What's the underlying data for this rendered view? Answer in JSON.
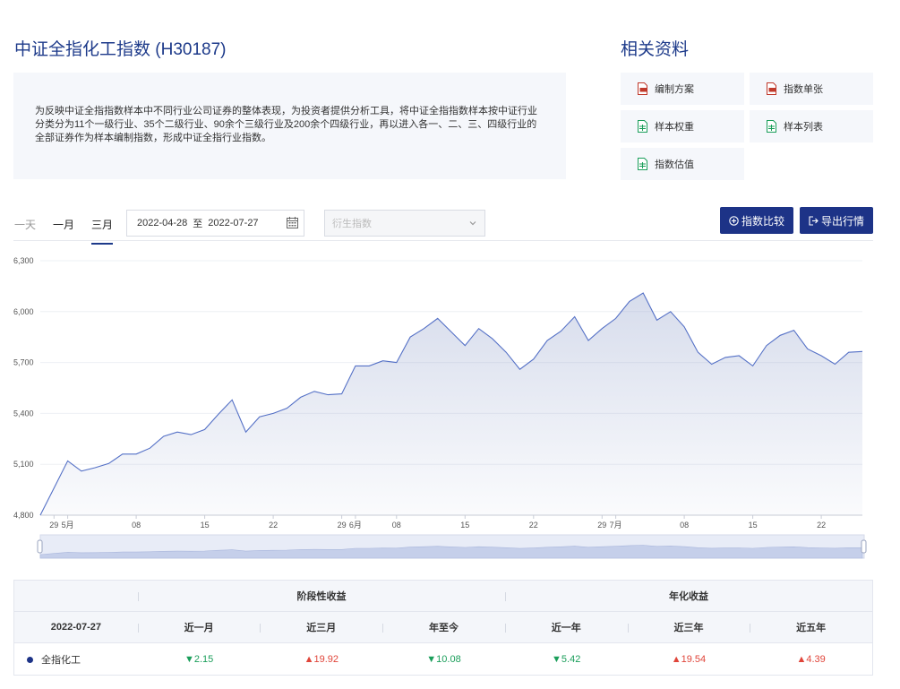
{
  "index": {
    "title": "中证全指化工指数 (H30187)",
    "description": "为反映中证全指指数样本中不同行业公司证券的整体表现，为投资者提供分析工具，将中证全指指数样本按中证行业分类分为11个一级行业、35个二级行业、90余个三级行业及200余个四级行业，再以进入各一、二、三、四级行业的全部证券作为样本编制指数，形成中证全指行业指数。"
  },
  "related": {
    "title": "相关资料",
    "docs": [
      {
        "label": "编制方案",
        "icon": "pdf-icon",
        "color": "#c0392b"
      },
      {
        "label": "指数单张",
        "icon": "pdf-icon",
        "color": "#c0392b"
      },
      {
        "label": "样本权重",
        "icon": "excel-icon",
        "color": "#1a9e5a"
      },
      {
        "label": "样本列表",
        "icon": "excel-icon",
        "color": "#1a9e5a"
      },
      {
        "label": "指数估值",
        "icon": "excel-icon",
        "color": "#1a9e5a"
      }
    ]
  },
  "controls": {
    "range_tabs": [
      "一天",
      "一月",
      "三月"
    ],
    "active_tab": "三月",
    "date_start": "2022-04-28",
    "date_sep": "至",
    "date_end": "2022-07-27",
    "derived_placeholder": "衍生指数",
    "compare_label": "指数比较",
    "export_label": "导出行情"
  },
  "colors": {
    "brand": "#1d3387",
    "line": "#5470c6",
    "up": "#e0453a",
    "down": "#1a9e5a"
  },
  "chart_data": {
    "type": "area",
    "ylim": [
      4800,
      6300
    ],
    "yticks": [
      "4,800",
      "5,100",
      "5,400",
      "5,700",
      "6,000",
      "6,300"
    ],
    "xticks": [
      "29",
      "5月",
      "08",
      "15",
      "22",
      "29",
      "6月",
      "08",
      "15",
      "22",
      "29",
      "7月",
      "08",
      "15",
      "22"
    ],
    "x": [
      "04-28",
      "04-29",
      "05-05",
      "05-06",
      "05-09",
      "05-10",
      "05-11",
      "05-12",
      "05-13",
      "05-16",
      "05-17",
      "05-18",
      "05-19",
      "05-20",
      "05-23",
      "05-24",
      "05-25",
      "05-26",
      "05-27",
      "05-30",
      "05-31",
      "06-01",
      "06-02",
      "06-06",
      "06-07",
      "06-08",
      "06-09",
      "06-10",
      "06-13",
      "06-14",
      "06-15",
      "06-16",
      "06-17",
      "06-20",
      "06-21",
      "06-22",
      "06-23",
      "06-24",
      "06-27",
      "06-28",
      "06-29",
      "06-30",
      "07-01",
      "07-04",
      "07-05",
      "07-06",
      "07-07",
      "07-08",
      "07-11",
      "07-12",
      "07-13",
      "07-14",
      "07-15",
      "07-18",
      "07-19",
      "07-20",
      "07-21",
      "07-22",
      "07-25",
      "07-26",
      "07-27"
    ],
    "values": [
      4800,
      4960,
      5120,
      5060,
      5080,
      5105,
      5160,
      5160,
      5195,
      5265,
      5290,
      5275,
      5305,
      5395,
      5480,
      5290,
      5380,
      5400,
      5430,
      5495,
      5530,
      5510,
      5515,
      5680,
      5680,
      5710,
      5700,
      5850,
      5900,
      5960,
      5880,
      5800,
      5900,
      5840,
      5760,
      5660,
      5720,
      5830,
      5885,
      5970,
      5830,
      5900,
      5960,
      6060,
      6110,
      5950,
      6000,
      5910,
      5760,
      5690,
      5730,
      5740,
      5680,
      5800,
      5860,
      5890,
      5780,
      5740,
      5690,
      5760,
      5765
    ]
  },
  "table": {
    "date": "2022-07-27",
    "group_periodic": "阶段性收益",
    "group_annual": "年化收益",
    "columns": [
      "近一月",
      "近三月",
      "年至今",
      "近一年",
      "近三年",
      "近五年"
    ],
    "rows": [
      {
        "name": "全指化工",
        "values": [
          {
            "text": "2.15",
            "dir": "down"
          },
          {
            "text": "19.92",
            "dir": "up"
          },
          {
            "text": "10.08",
            "dir": "down"
          },
          {
            "text": "5.42",
            "dir": "down"
          },
          {
            "text": "19.54",
            "dir": "up"
          },
          {
            "text": "4.39",
            "dir": "up"
          }
        ]
      }
    ]
  }
}
